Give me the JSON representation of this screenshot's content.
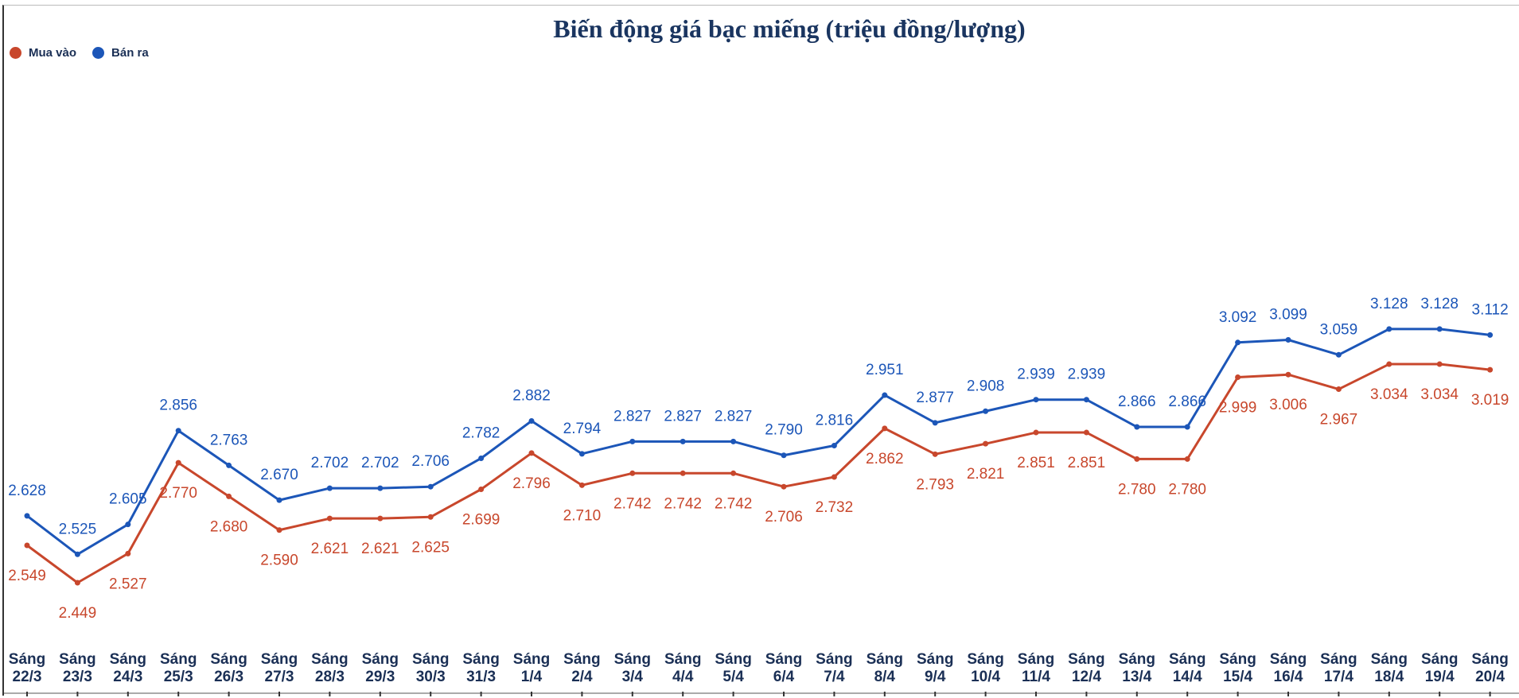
{
  "chart_data": {
    "type": "line",
    "title": "Biến động giá bạc miếng (triệu đồng/lượng)",
    "legend_position": "top-left",
    "grid": false,
    "categories": [
      "Sáng 22/3",
      "Sáng 23/3",
      "Sáng 24/3",
      "Sáng 25/3",
      "Sáng 26/3",
      "Sáng 27/3",
      "Sáng 28/3",
      "Sáng 29/3",
      "Sáng 30/3",
      "Sáng 31/3",
      "Sáng 1/4",
      "Sáng 2/4",
      "Sáng 3/4",
      "Sáng 4/4",
      "Sáng 5/4",
      "Sáng 6/4",
      "Sáng 7/4",
      "Sáng 8/4",
      "Sáng 9/4",
      "Sáng 10/4",
      "Sáng 11/4",
      "Sáng 12/4",
      "Sáng 13/4",
      "Sáng 14/4",
      "Sáng 15/4",
      "Sáng 16/4",
      "Sáng 17/4",
      "Sáng 18/4",
      "Sáng 19/4",
      "Sáng 20/4"
    ],
    "series": [
      {
        "name": "Mua vào",
        "color": "#c8472c",
        "values": [
          2.549,
          2.449,
          2.527,
          2.77,
          2.68,
          2.59,
          2.621,
          2.621,
          2.625,
          2.699,
          2.796,
          2.71,
          2.742,
          2.742,
          2.742,
          2.706,
          2.732,
          2.862,
          2.793,
          2.821,
          2.851,
          2.851,
          2.78,
          2.78,
          2.999,
          3.006,
          2.967,
          3.034,
          3.034,
          3.019
        ]
      },
      {
        "name": "Bán ra",
        "color": "#1c56b8",
        "values": [
          2.628,
          2.525,
          2.605,
          2.856,
          2.763,
          2.67,
          2.702,
          2.702,
          2.706,
          2.782,
          2.882,
          2.794,
          2.827,
          2.827,
          2.827,
          2.79,
          2.816,
          2.951,
          2.877,
          2.908,
          2.939,
          2.939,
          2.866,
          2.866,
          3.092,
          3.099,
          3.059,
          3.128,
          3.128,
          3.112
        ]
      }
    ]
  }
}
